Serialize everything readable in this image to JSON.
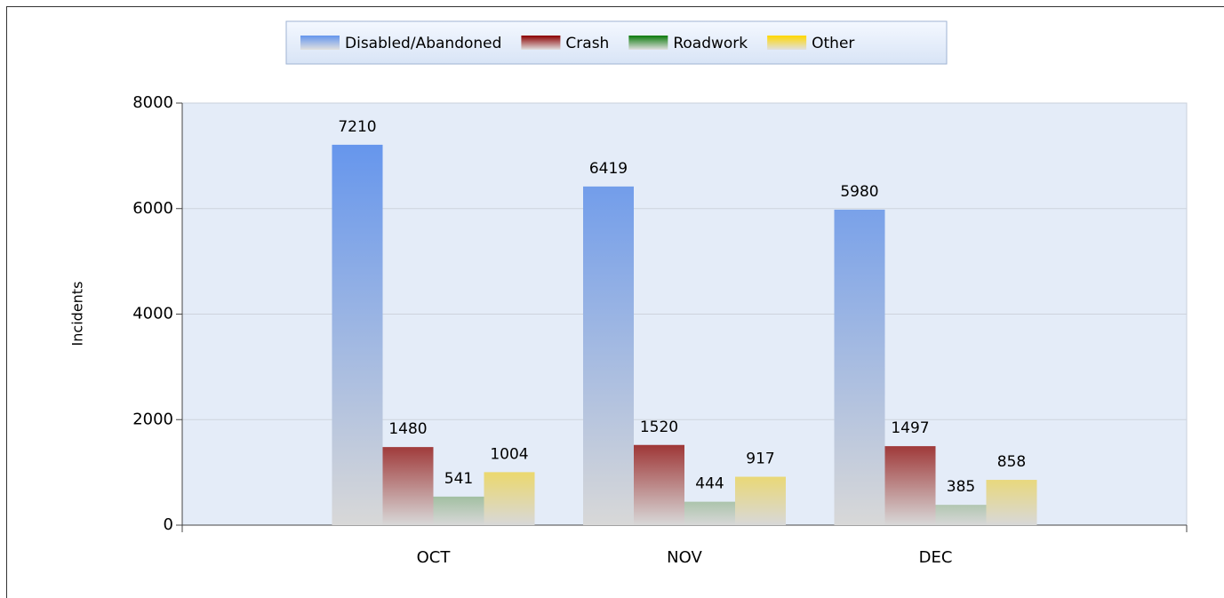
{
  "chart_data": {
    "type": "bar",
    "categories": [
      "OCT",
      "NOV",
      "DEC"
    ],
    "series": [
      {
        "name": "Disabled/Abandoned",
        "color": "#6495ed",
        "values": [
          7210,
          6419,
          5980
        ]
      },
      {
        "name": "Crash",
        "color": "#8b0000",
        "values": [
          1480,
          1520,
          1497
        ]
      },
      {
        "name": "Roadwork",
        "color": "#0b7a0b",
        "values": [
          541,
          444,
          385
        ]
      },
      {
        "name": "Other",
        "color": "#ffd700",
        "values": [
          1004,
          917,
          858
        ]
      }
    ],
    "ylabel": "Incidents",
    "ylim": [
      0,
      8000
    ],
    "yticks": [
      0,
      2000,
      4000,
      6000,
      8000
    ],
    "grid": true,
    "legend": "top"
  }
}
